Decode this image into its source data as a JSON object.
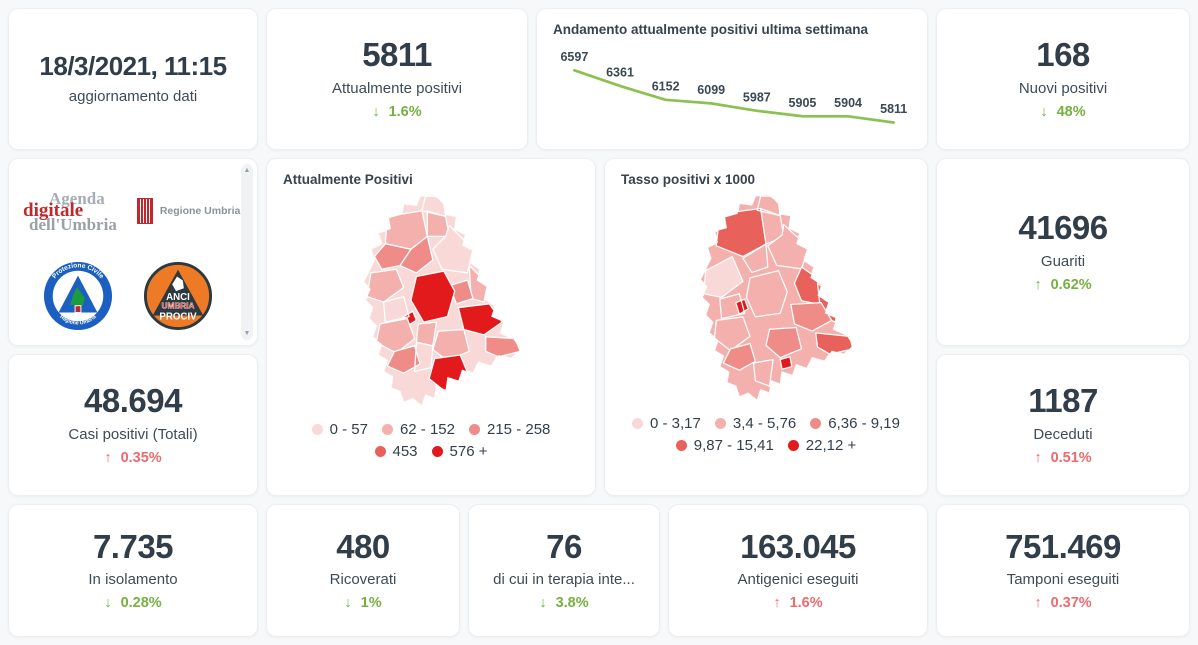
{
  "theme": {
    "green": "#76b041",
    "red": "#ed6a6d",
    "dark": "#313d49"
  },
  "cards": {
    "update": {
      "value": "18/3/2021, 11:15",
      "label": "aggiornamento dati"
    },
    "attualmente": {
      "value": "5811",
      "label": "Attualmente positivi",
      "arrow": "↓",
      "delta": "1.6%",
      "tone": "good"
    },
    "nuovi": {
      "value": "168",
      "label": "Nuovi positivi",
      "arrow": "↓",
      "delta": "48%",
      "tone": "good"
    },
    "guariti": {
      "value": "41696",
      "label": "Guariti",
      "arrow": "↑",
      "delta": "0.62%",
      "tone": "good"
    },
    "casi": {
      "value": "48.694",
      "label": "Casi positivi (Totali)",
      "arrow": "↑",
      "delta": "0.35%",
      "tone": "bad"
    },
    "deceduti": {
      "value": "1187",
      "label": "Deceduti",
      "arrow": "↑",
      "delta": "0.51%",
      "tone": "bad"
    },
    "isolamento": {
      "value": "7.735",
      "label": "In isolamento",
      "arrow": "↓",
      "delta": "0.28%",
      "tone": "good"
    },
    "ricoverati": {
      "value": "480",
      "label": "Ricoverati",
      "arrow": "↓",
      "delta": "1%",
      "tone": "good"
    },
    "terapia": {
      "value": "76",
      "label": "di cui in terapia inte...",
      "arrow": "↓",
      "delta": "3.8%",
      "tone": "good"
    },
    "antigenici": {
      "value": "163.045",
      "label": "Antigenici eseguiti",
      "arrow": "↑",
      "delta": "1.6%",
      "tone": "bad"
    },
    "tamponi": {
      "value": "751.469",
      "label": "Tamponi eseguiti",
      "arrow": "↑",
      "delta": "0.37%",
      "tone": "bad"
    }
  },
  "chart_data": {
    "type": "line",
    "title": "Andamento attualmente positivi ultima settimana",
    "values": [
      6597,
      6361,
      6152,
      6099,
      5987,
      5905,
      5904,
      5811
    ],
    "ylim": [
      5811,
      6597
    ],
    "line_color": "#8cc152",
    "grid": false,
    "point_labels_shown": true
  },
  "maps": {
    "palette": [
      "#f9d9d7",
      "#f4b0ad",
      "#ef8c88",
      "#e9615b",
      "#e31a1c"
    ],
    "attualmente": {
      "title": "Attualmente Positivi",
      "legend": [
        "0 - 57",
        "62 - 152",
        "215 - 258",
        "453",
        "576 +"
      ]
    },
    "tasso": {
      "title": "Tasso positivi x 1000",
      "legend": [
        "0 - 3,17",
        "3,4 - 5,76",
        "6,36 - 9,19",
        "9,87 - 15,41",
        "22,12 +"
      ]
    }
  },
  "logos": {
    "agenda_line1": "Agenda",
    "agenda_line2": "digitale",
    "agenda_line3": "dell'Umbria",
    "regione": "Regione Umbria",
    "protezione_top": "Protezione Civile",
    "protezione_bottom": "Regione Umbria",
    "anci_line1": "ANCI",
    "anci_line2": "UMBRIA",
    "anci_line3": "PROCIV"
  }
}
